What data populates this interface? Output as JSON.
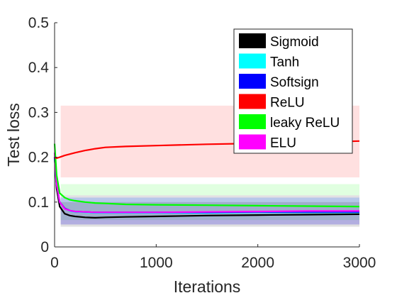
{
  "chart_data": {
    "type": "line",
    "title": "",
    "xlabel": "Iterations",
    "ylabel": "Test loss",
    "xlim": [
      0,
      3000
    ],
    "ylim": [
      0,
      0.5
    ],
    "xticks": [
      "0",
      "1000",
      "2000",
      "3000"
    ],
    "yticks": [
      "0",
      "0.1",
      "0.2",
      "0.3",
      "0.4",
      "0.5"
    ],
    "grid": false,
    "legend_position": "top-right",
    "series": [
      {
        "name": "Sigmoid",
        "color": "#000000",
        "x": [
          0,
          20,
          50,
          100,
          150,
          200,
          300,
          400,
          500,
          700,
          1000,
          1500,
          2000,
          2500,
          3000
        ],
        "y": [
          0.2,
          0.13,
          0.09,
          0.074,
          0.07,
          0.068,
          0.066,
          0.065,
          0.066,
          0.067,
          0.068,
          0.07,
          0.071,
          0.072,
          0.073
        ],
        "band": [
          0.045,
          0.1
        ]
      },
      {
        "name": "Tanh",
        "color": "#00ffff",
        "x": [
          0,
          20,
          50,
          100,
          150,
          200,
          300,
          400,
          500,
          700,
          1000,
          1500,
          2000,
          2500,
          3000
        ],
        "y": [
          0.2,
          0.14,
          0.1,
          0.085,
          0.08,
          0.078,
          0.077,
          0.076,
          0.076,
          0.076,
          0.076,
          0.076,
          0.077,
          0.077,
          0.077
        ],
        "band": [
          0.05,
          0.11
        ]
      },
      {
        "name": "Softsign",
        "color": "#0000ff",
        "x": [
          0,
          20,
          50,
          100,
          150,
          200,
          300,
          400,
          500,
          700,
          1000,
          1500,
          2000,
          2500,
          3000
        ],
        "y": [
          0.2,
          0.14,
          0.1,
          0.086,
          0.081,
          0.079,
          0.078,
          0.077,
          0.077,
          0.077,
          0.077,
          0.077,
          0.078,
          0.078,
          0.078
        ],
        "band": [
          0.05,
          0.11
        ]
      },
      {
        "name": "ReLU",
        "color": "#ff0000",
        "x": [
          0,
          20,
          50,
          100,
          200,
          300,
          400,
          500,
          700,
          1000,
          1500,
          2000,
          2500,
          3000
        ],
        "y": [
          0.2,
          0.198,
          0.2,
          0.204,
          0.21,
          0.215,
          0.219,
          0.222,
          0.224,
          0.226,
          0.229,
          0.231,
          0.233,
          0.236
        ],
        "band": [
          0.155,
          0.315
        ]
      },
      {
        "name": "leaky ReLU",
        "color": "#00ff00",
        "x": [
          0,
          20,
          50,
          100,
          150,
          200,
          300,
          400,
          500,
          700,
          1000,
          1500,
          2000,
          2500,
          3000
        ],
        "y": [
          0.23,
          0.16,
          0.12,
          0.11,
          0.105,
          0.103,
          0.1,
          0.098,
          0.097,
          0.095,
          0.094,
          0.093,
          0.092,
          0.091,
          0.09
        ],
        "band": [
          0.06,
          0.14
        ]
      },
      {
        "name": "ELU",
        "color": "#ff00ff",
        "x": [
          0,
          20,
          50,
          100,
          150,
          200,
          300,
          400,
          500,
          700,
          1000,
          1500,
          2000,
          2500,
          3000
        ],
        "y": [
          0.21,
          0.14,
          0.1,
          0.085,
          0.081,
          0.079,
          0.078,
          0.077,
          0.077,
          0.077,
          0.077,
          0.078,
          0.079,
          0.08,
          0.08
        ],
        "band": [
          0.05,
          0.115
        ]
      }
    ]
  }
}
